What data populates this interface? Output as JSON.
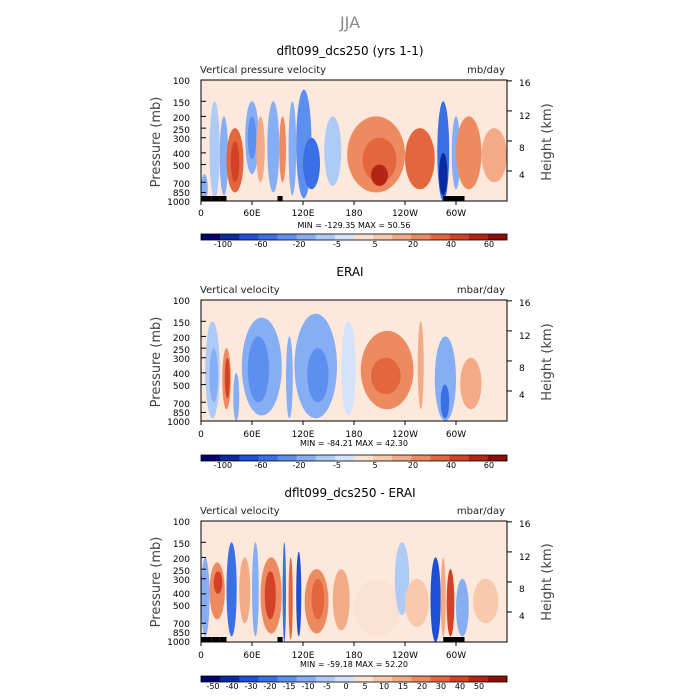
{
  "figure": {
    "season": "JJA"
  },
  "chart_data": [
    {
      "type": "heatmap",
      "title": "dflt099_dcs250 (yrs 1-1)",
      "left_label": "Vertical pressure velocity",
      "units": "mb/day",
      "ylabel": "Pressure (mb)",
      "ylabel_right": "Height (km)",
      "y_ticks": [
        "100",
        "150",
        "200",
        "250",
        "300",
        "400",
        "500",
        "700",
        "850",
        "1000"
      ],
      "y_ticks_right": [
        "16",
        "12",
        "8",
        "4"
      ],
      "x_ticks": [
        "0",
        "60E",
        "120E",
        "180",
        "120W",
        "60W"
      ],
      "stats": "MIN = -129.35   MAX =  50.56",
      "colorbar_labels": [
        "-100",
        "-60",
        "-20",
        "-5",
        "5",
        "20",
        "40",
        "60"
      ],
      "colors": [
        "#05006e",
        "#0a2ba0",
        "#1f4fd6",
        "#3a6fe6",
        "#5d8ff0",
        "#86aef5",
        "#aecbf8",
        "#d2e3fb",
        "#fbe2d2",
        "#f8c9ad",
        "#f4aa86",
        "#ee8a60",
        "#e4663d",
        "#d34226",
        "#b52515",
        "#8a0f08"
      ],
      "cells": [
        {
          "lon_deg": [
            0,
            8
          ],
          "p_mb": [
            600,
            1000
          ],
          "value": -25
        },
        {
          "lon_deg": [
            10,
            22
          ],
          "p_mb": [
            150,
            950
          ],
          "value": -15
        },
        {
          "lon_deg": [
            22,
            32
          ],
          "p_mb": [
            200,
            900
          ],
          "value": -30
        },
        {
          "lon_deg": [
            30,
            50
          ],
          "p_mb": [
            250,
            850
          ],
          "value": 25
        },
        {
          "lon_deg": [
            35,
            45
          ],
          "p_mb": [
            320,
            700
          ],
          "value": 40
        },
        {
          "lon_deg": [
            52,
            68
          ],
          "p_mb": [
            150,
            600
          ],
          "value": -20
        },
        {
          "lon_deg": [
            55,
            65
          ],
          "p_mb": [
            200,
            450
          ],
          "value": -40
        },
        {
          "lon_deg": [
            65,
            75
          ],
          "p_mb": [
            200,
            700
          ],
          "value": 10
        },
        {
          "lon_deg": [
            78,
            92
          ],
          "p_mb": [
            150,
            850
          ],
          "value": -25
        },
        {
          "lon_deg": [
            92,
            100
          ],
          "p_mb": [
            200,
            700
          ],
          "value": 15
        },
        {
          "lon_deg": [
            103,
            112
          ],
          "p_mb": [
            150,
            900
          ],
          "value": -30
        },
        {
          "lon_deg": [
            112,
            130
          ],
          "p_mb": [
            120,
            950
          ],
          "value": -40
        },
        {
          "lon_deg": [
            120,
            140
          ],
          "p_mb": [
            300,
            800
          ],
          "value": -70
        },
        {
          "lon_deg": [
            145,
            165
          ],
          "p_mb": [
            200,
            750
          ],
          "value": -15
        },
        {
          "lon_deg": [
            172,
            240
          ],
          "p_mb": [
            200,
            850
          ],
          "value": 20
        },
        {
          "lon_deg": [
            190,
            230
          ],
          "p_mb": [
            300,
            700
          ],
          "value": 30
        },
        {
          "lon_deg": [
            200,
            220
          ],
          "p_mb": [
            500,
            750
          ],
          "value": 45
        },
        {
          "lon_deg": [
            240,
            275
          ],
          "p_mb": [
            250,
            800
          ],
          "value": 25
        },
        {
          "lon_deg": [
            278,
            292
          ],
          "p_mb": [
            150,
            1000
          ],
          "value": -60
        },
        {
          "lon_deg": [
            280,
            290
          ],
          "p_mb": [
            400,
            900
          ],
          "value": -110
        },
        {
          "lon_deg": [
            295,
            305
          ],
          "p_mb": [
            200,
            800
          ],
          "value": -20
        },
        {
          "lon_deg": [
            300,
            330
          ],
          "p_mb": [
            200,
            800
          ],
          "value": 15
        },
        {
          "lon_deg": [
            330,
            360
          ],
          "p_mb": [
            250,
            700
          ],
          "value": 10
        }
      ]
    },
    {
      "type": "heatmap",
      "title": "ERAI",
      "left_label": "Vertical velocity",
      "units": "mbar/day",
      "ylabel": "Pressure (mb)",
      "ylabel_right": "Height (km)",
      "y_ticks": [
        "100",
        "150",
        "200",
        "250",
        "300",
        "400",
        "500",
        "700",
        "850",
        "1000"
      ],
      "y_ticks_right": [
        "16",
        "12",
        "8",
        "4"
      ],
      "x_ticks": [
        "0",
        "60E",
        "120E",
        "180",
        "120W",
        "60W"
      ],
      "stats": "MIN = -84.21   MAX =  42.30",
      "colorbar_labels": [
        "-100",
        "-60",
        "-20",
        "-5",
        "5",
        "20",
        "40",
        "60"
      ],
      "colors": [
        "#05006e",
        "#0a2ba0",
        "#1f4fd6",
        "#3a6fe6",
        "#5d8ff0",
        "#86aef5",
        "#aecbf8",
        "#d2e3fb",
        "#fbe2d2",
        "#f8c9ad",
        "#f4aa86",
        "#ee8a60",
        "#e4663d",
        "#d34226",
        "#b52515",
        "#8a0f08"
      ],
      "cells": [
        {
          "lon_deg": [
            5,
            22
          ],
          "p_mb": [
            150,
            950
          ],
          "value": -15
        },
        {
          "lon_deg": [
            10,
            20
          ],
          "p_mb": [
            250,
            700
          ],
          "value": -30
        },
        {
          "lon_deg": [
            25,
            35
          ],
          "p_mb": [
            250,
            800
          ],
          "value": 20
        },
        {
          "lon_deg": [
            28,
            34
          ],
          "p_mb": [
            300,
            650
          ],
          "value": 35
        },
        {
          "lon_deg": [
            38,
            45
          ],
          "p_mb": [
            400,
            1000
          ],
          "value": -30
        },
        {
          "lon_deg": [
            48,
            95
          ],
          "p_mb": [
            140,
            900
          ],
          "value": -20
        },
        {
          "lon_deg": [
            55,
            80
          ],
          "p_mb": [
            200,
            700
          ],
          "value": -40
        },
        {
          "lon_deg": [
            100,
            108
          ],
          "p_mb": [
            200,
            950
          ],
          "value": -20
        },
        {
          "lon_deg": [
            110,
            160
          ],
          "p_mb": [
            130,
            950
          ],
          "value": -25
        },
        {
          "lon_deg": [
            125,
            150
          ],
          "p_mb": [
            250,
            700
          ],
          "value": -50
        },
        {
          "lon_deg": [
            165,
            182
          ],
          "p_mb": [
            150,
            900
          ],
          "value": -5
        },
        {
          "lon_deg": [
            188,
            250
          ],
          "p_mb": [
            180,
            800
          ],
          "value": 15
        },
        {
          "lon_deg": [
            200,
            235
          ],
          "p_mb": [
            300,
            600
          ],
          "value": 25
        },
        {
          "lon_deg": [
            255,
            262
          ],
          "p_mb": [
            150,
            800
          ],
          "value": 10
        },
        {
          "lon_deg": [
            275,
            300
          ],
          "p_mb": [
            200,
            1000
          ],
          "value": -30
        },
        {
          "lon_deg": [
            282,
            292
          ],
          "p_mb": [
            500,
            950
          ],
          "value": -60
        },
        {
          "lon_deg": [
            305,
            330
          ],
          "p_mb": [
            300,
            800
          ],
          "value": 10
        }
      ]
    },
    {
      "type": "heatmap",
      "title": "dflt099_dcs250 - ERAI",
      "left_label": "Vertical velocity",
      "units": "mbar/day",
      "ylabel": "Pressure (mb)",
      "ylabel_right": "Height (km)",
      "y_ticks": [
        "100",
        "150",
        "200",
        "250",
        "300",
        "400",
        "500",
        "700",
        "850",
        "1000"
      ],
      "y_ticks_right": [
        "16",
        "12",
        "8",
        "4"
      ],
      "x_ticks": [
        "0",
        "60E",
        "120E",
        "180",
        "120W",
        "60W"
      ],
      "stats": "MIN = -59.18   MAX =  52.20",
      "colorbar_labels": [
        "-50",
        "-40",
        "-30",
        "-20",
        "-15",
        "-10",
        "-5",
        "0",
        "5",
        "10",
        "15",
        "20",
        "30",
        "40",
        "50"
      ],
      "colors": [
        "#05006e",
        "#0a2ba0",
        "#1f4fd6",
        "#3a6fe6",
        "#5d8ff0",
        "#86aef5",
        "#aecbf8",
        "#d2e3fb",
        "#fbe2d2",
        "#f8c9ad",
        "#f4aa86",
        "#ee8a60",
        "#e4663d",
        "#d34226",
        "#b52515",
        "#8a0f08"
      ],
      "cells": [
        {
          "lon_deg": [
            0,
            10
          ],
          "p_mb": [
            200,
            900
          ],
          "value": -10
        },
        {
          "lon_deg": [
            10,
            28
          ],
          "p_mb": [
            220,
            650
          ],
          "value": 20
        },
        {
          "lon_deg": [
            15,
            25
          ],
          "p_mb": [
            260,
            400
          ],
          "value": 35
        },
        {
          "lon_deg": [
            30,
            42
          ],
          "p_mb": [
            150,
            900
          ],
          "value": -20
        },
        {
          "lon_deg": [
            45,
            58
          ],
          "p_mb": [
            200,
            700
          ],
          "value": 15
        },
        {
          "lon_deg": [
            60,
            68
          ],
          "p_mb": [
            150,
            900
          ],
          "value": -12
        },
        {
          "lon_deg": [
            70,
            95
          ],
          "p_mb": [
            200,
            850
          ],
          "value": 20
        },
        {
          "lon_deg": [
            75,
            88
          ],
          "p_mb": [
            260,
            650
          ],
          "value": 40
        },
        {
          "lon_deg": [
            96,
            100
          ],
          "p_mb": [
            150,
            1000
          ],
          "value": -20
        },
        {
          "lon_deg": [
            103,
            108
          ],
          "p_mb": [
            200,
            950
          ],
          "value": 25
        },
        {
          "lon_deg": [
            112,
            118
          ],
          "p_mb": [
            180,
            900
          ],
          "value": -30
        },
        {
          "lon_deg": [
            122,
            150
          ],
          "p_mb": [
            250,
            850
          ],
          "value": 18
        },
        {
          "lon_deg": [
            130,
            145
          ],
          "p_mb": [
            300,
            650
          ],
          "value": 30
        },
        {
          "lon_deg": [
            155,
            175
          ],
          "p_mb": [
            250,
            800
          ],
          "value": 12
        },
        {
          "lon_deg": [
            180,
            235
          ],
          "p_mb": [
            300,
            900
          ],
          "value": 3
        },
        {
          "lon_deg": [
            228,
            245
          ],
          "p_mb": [
            150,
            600
          ],
          "value": -8
        },
        {
          "lon_deg": [
            240,
            268
          ],
          "p_mb": [
            300,
            750
          ],
          "value": 8
        },
        {
          "lon_deg": [
            270,
            282
          ],
          "p_mb": [
            200,
            1000
          ],
          "value": -30
        },
        {
          "lon_deg": [
            282,
            288
          ],
          "p_mb": [
            200,
            900
          ],
          "value": 15
        },
        {
          "lon_deg": [
            289,
            298
          ],
          "p_mb": [
            250,
            900
          ],
          "value": 40
        },
        {
          "lon_deg": [
            300,
            315
          ],
          "p_mb": [
            300,
            900
          ],
          "value": -12
        },
        {
          "lon_deg": [
            320,
            350
          ],
          "p_mb": [
            300,
            700
          ],
          "value": 6
        }
      ]
    }
  ]
}
